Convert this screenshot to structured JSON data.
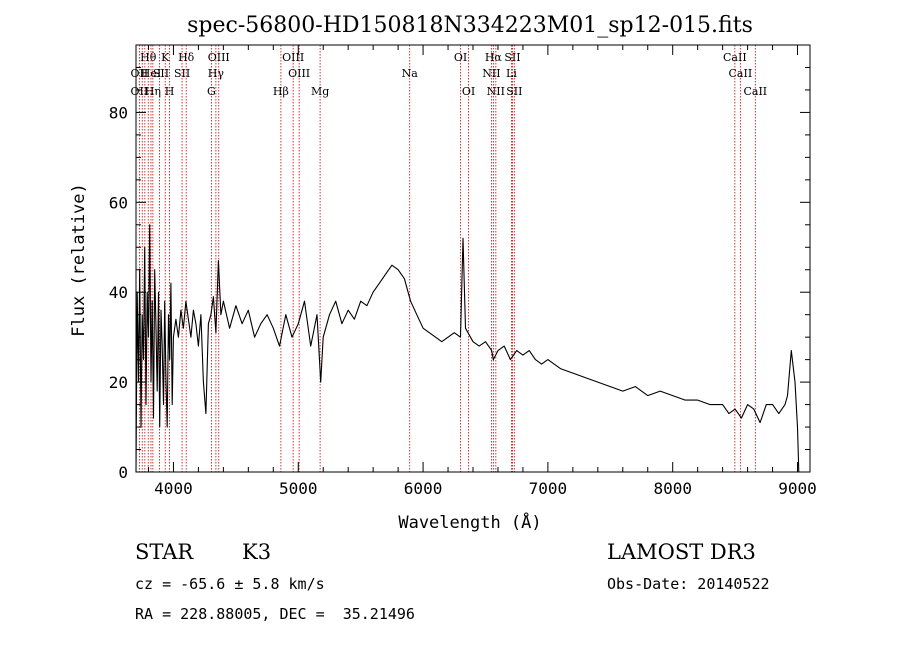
{
  "chart_data": {
    "type": "line",
    "title": "spec-56800-HD150818N334223M01_sp12-015.fits",
    "xlabel": "Wavelength (Å)",
    "ylabel": "Flux (relative)",
    "xlim": [
      3700,
      9100
    ],
    "ylim": [
      0,
      95
    ],
    "x_ticks": [
      4000,
      5000,
      6000,
      7000,
      8000,
      9000
    ],
    "y_ticks": [
      0,
      20,
      40,
      60,
      80
    ],
    "series": [
      {
        "name": "flux",
        "x": [
          3700,
          3710,
          3720,
          3730,
          3740,
          3750,
          3760,
          3770,
          3780,
          3790,
          3800,
          3810,
          3820,
          3830,
          3840,
          3850,
          3860,
          3870,
          3880,
          3890,
          3900,
          3910,
          3920,
          3930,
          3940,
          3950,
          3960,
          3970,
          3980,
          3990,
          4000,
          4020,
          4040,
          4060,
          4080,
          4100,
          4120,
          4140,
          4160,
          4180,
          4200,
          4220,
          4240,
          4260,
          4280,
          4300,
          4320,
          4340,
          4360,
          4380,
          4400,
          4450,
          4500,
          4550,
          4600,
          4650,
          4700,
          4750,
          4800,
          4850,
          4900,
          4950,
          5000,
          5050,
          5100,
          5150,
          5180,
          5200,
          5250,
          5300,
          5350,
          5400,
          5450,
          5500,
          5550,
          5600,
          5650,
          5700,
          5750,
          5800,
          5850,
          5880,
          5900,
          5950,
          6000,
          6050,
          6100,
          6150,
          6200,
          6250,
          6300,
          6320,
          6340,
          6360,
          6400,
          6450,
          6500,
          6550,
          6563,
          6600,
          6650,
          6700,
          6750,
          6800,
          6850,
          6900,
          6950,
          7000,
          7100,
          7200,
          7300,
          7400,
          7500,
          7600,
          7700,
          7800,
          7900,
          8000,
          8100,
          8200,
          8300,
          8400,
          8450,
          8500,
          8550,
          8600,
          8650,
          8700,
          8750,
          8800,
          8850,
          8900,
          8920,
          8950,
          8980,
          9000,
          9010
        ],
        "y": [
          0,
          40,
          20,
          45,
          10,
          35,
          25,
          50,
          15,
          40,
          30,
          55,
          20,
          38,
          12,
          45,
          32,
          18,
          40,
          10,
          36,
          28,
          15,
          38,
          20,
          10,
          35,
          25,
          42,
          15,
          30,
          34,
          30,
          36,
          32,
          38,
          34,
          30,
          36,
          33,
          28,
          35,
          20,
          13,
          33,
          35,
          39,
          31,
          47,
          35,
          38,
          32,
          37,
          33,
          36,
          30,
          33,
          35,
          32,
          28,
          35,
          30,
          33,
          38,
          28,
          35,
          20,
          30,
          35,
          38,
          33,
          36,
          34,
          38,
          37,
          40,
          42,
          44,
          46,
          45,
          43,
          40,
          38,
          35,
          32,
          31,
          30,
          29,
          30,
          31,
          30,
          52,
          32,
          31,
          29,
          28,
          29,
          27,
          25,
          27,
          28,
          25,
          27,
          26,
          27,
          25,
          24,
          25,
          23,
          22,
          21,
          20,
          19,
          18,
          19,
          17,
          18,
          17,
          16,
          16,
          15,
          15,
          13,
          14,
          12,
          15,
          14,
          11,
          15,
          15,
          13,
          15,
          17,
          27,
          20,
          10,
          0
        ]
      }
    ],
    "line_labels": [
      {
        "text": "Hθ",
        "x": 3798,
        "row": 1
      },
      {
        "text": "OII",
        "x": 3727,
        "row": 2
      },
      {
        "text": "HeI",
        "x": 3820,
        "row": 2
      },
      {
        "text": "SII",
        "x": 3900,
        "row": 2
      },
      {
        "text": "OII",
        "x": 3727,
        "row": 3
      },
      {
        "text": "Hη",
        "x": 3835,
        "row": 3
      },
      {
        "text": "K",
        "x": 3934,
        "row": 1
      },
      {
        "text": "H",
        "x": 3969,
        "row": 3
      },
      {
        "text": "Hδ",
        "x": 4102,
        "row": 1
      },
      {
        "text": "SII",
        "x": 4069,
        "row": 2
      },
      {
        "text": "OIII",
        "x": 4363,
        "row": 1
      },
      {
        "text": "Hγ",
        "x": 4340,
        "row": 2
      },
      {
        "text": "G",
        "x": 4304,
        "row": 3
      },
      {
        "text": "OIII",
        "x": 4959,
        "row": 1
      },
      {
        "text": "OIII",
        "x": 5007,
        "row": 2
      },
      {
        "text": "Hβ",
        "x": 4861,
        "row": 3
      },
      {
        "text": "Mg",
        "x": 5175,
        "row": 3
      },
      {
        "text": "Na",
        "x": 5893,
        "row": 2
      },
      {
        "text": "OI",
        "x": 6300,
        "row": 1
      },
      {
        "text": "OI",
        "x": 6364,
        "row": 3
      },
      {
        "text": "Hα",
        "x": 6563,
        "row": 1
      },
      {
        "text": "NII",
        "x": 6548,
        "row": 2
      },
      {
        "text": "NII",
        "x": 6583,
        "row": 3
      },
      {
        "text": "SII",
        "x": 6716,
        "row": 1
      },
      {
        "text": "Li",
        "x": 6708,
        "row": 2
      },
      {
        "text": "SII",
        "x": 6731,
        "row": 3
      },
      {
        "text": "CaII",
        "x": 8498,
        "row": 1
      },
      {
        "text": "CaII",
        "x": 8542,
        "row": 2
      },
      {
        "text": "CaII",
        "x": 8662,
        "row": 3
      }
    ],
    "line_positions": [
      3727,
      3750,
      3771,
      3798,
      3820,
      3835,
      3889,
      3934,
      3969,
      4069,
      4102,
      4304,
      4340,
      4363,
      4861,
      4959,
      5007,
      5175,
      5893,
      6300,
      6364,
      6548,
      6563,
      6583,
      6708,
      6716,
      6731,
      8498,
      8542,
      8662
    ],
    "line_color": "#cc0000"
  },
  "info": {
    "object_class": "STAR",
    "subclass": "K3",
    "survey": "LAMOST DR3",
    "cz": "cz = -65.6 ± 5.8 km/s",
    "obs_date": "Obs-Date: 20140522",
    "coords": "RA = 228.88005, DEC =  35.21496"
  }
}
